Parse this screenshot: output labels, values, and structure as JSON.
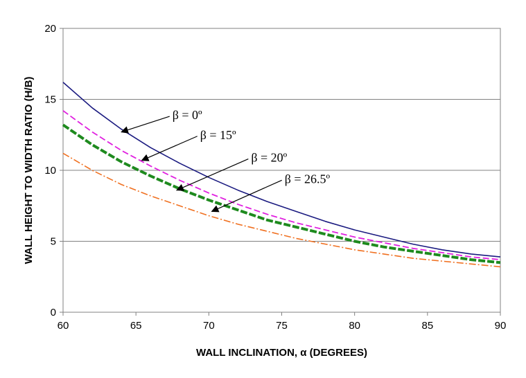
{
  "chart_data": {
    "type": "line",
    "title": "",
    "xlabel": "WALL INCLINATION, α (DEGREES)",
    "ylabel": "WALL HEIGHT TO WIDTH RATIO (H/B)",
    "xlim": [
      60,
      90
    ],
    "ylim": [
      0,
      20
    ],
    "xticks": [
      "60",
      "65",
      "70",
      "75",
      "80",
      "85",
      "90"
    ],
    "yticks": [
      "0",
      "5",
      "10",
      "15",
      "20"
    ],
    "grid": "horizontal",
    "legend": "none",
    "x": [
      60,
      62,
      64,
      66,
      68,
      70,
      72,
      74,
      76,
      78,
      80,
      82,
      84,
      86,
      88,
      90
    ],
    "series": [
      {
        "name": "β = 0º",
        "color": "#1a1a80",
        "style": "solid",
        "values": [
          16.2,
          14.4,
          12.9,
          11.6,
          10.5,
          9.5,
          8.6,
          7.8,
          7.1,
          6.4,
          5.8,
          5.3,
          4.8,
          4.4,
          4.1,
          3.9
        ]
      },
      {
        "name": "β = 15º",
        "color": "#e020e0",
        "style": "dashed",
        "values": [
          14.2,
          12.7,
          11.4,
          10.3,
          9.3,
          8.4,
          7.6,
          6.9,
          6.3,
          5.8,
          5.3,
          4.9,
          4.5,
          4.2,
          3.9,
          3.7
        ]
      },
      {
        "name": "β = 20º",
        "color": "#1e8a1e",
        "style": "thick-dashed",
        "values": [
          13.2,
          11.8,
          10.6,
          9.6,
          8.7,
          7.9,
          7.2,
          6.5,
          6.0,
          5.5,
          5.0,
          4.6,
          4.3,
          4.0,
          3.7,
          3.5
        ]
      },
      {
        "name": "β = 26.5º",
        "color": "#f07020",
        "style": "dash-dot",
        "values": [
          11.2,
          10.0,
          9.0,
          8.2,
          7.5,
          6.8,
          6.2,
          5.7,
          5.2,
          4.8,
          4.4,
          4.1,
          3.8,
          3.6,
          3.4,
          3.2
        ]
      }
    ],
    "annotations": [
      {
        "text": "β = 0º",
        "x": 67.5,
        "y": 13.9,
        "arrow_to": [
          64.0,
          12.7
        ]
      },
      {
        "text": "β = 15º",
        "x": 69.4,
        "y": 12.5,
        "arrow_to": [
          65.4,
          10.7
        ]
      },
      {
        "text": "β = 20º",
        "x": 72.9,
        "y": 10.9,
        "arrow_to": [
          67.8,
          8.6
        ]
      },
      {
        "text": "β = 26.5º",
        "x": 75.2,
        "y": 9.4,
        "arrow_to": [
          70.2,
          7.1
        ]
      }
    ]
  }
}
